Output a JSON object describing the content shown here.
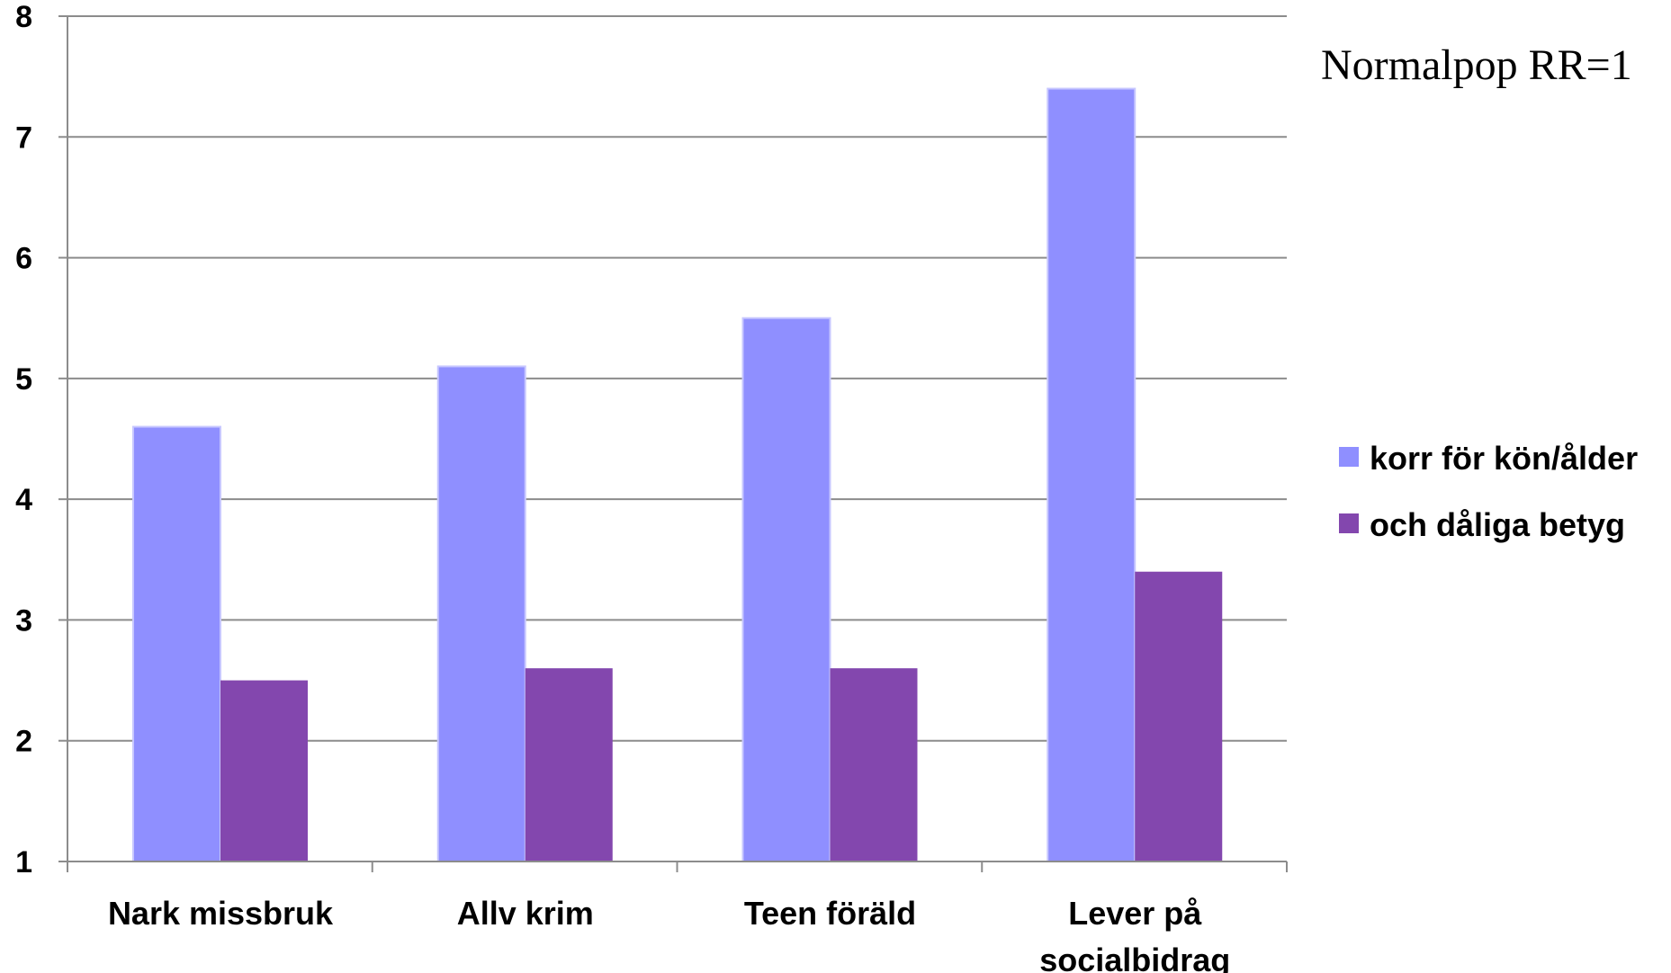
{
  "chart_data": {
    "type": "bar",
    "categories": [
      [
        "Nark missbruk"
      ],
      [
        "Allv krim"
      ],
      [
        "Teen föräld"
      ],
      [
        "Lever på",
        "socialbidrag"
      ]
    ],
    "series": [
      {
        "name": "korr för kön/ålder",
        "values": [
          4.6,
          5.1,
          5.5,
          7.4
        ],
        "color": "#8f8fff"
      },
      {
        "name": "och dåliga betyg",
        "values": [
          2.5,
          2.6,
          2.6,
          3.4
        ],
        "color": "#8347ae"
      }
    ],
    "ylim": [
      1,
      8
    ],
    "yticks": [
      "1",
      "2",
      "3",
      "4",
      "5",
      "6",
      "7",
      "8"
    ],
    "grid": true,
    "legend_position": "right",
    "annotation": "Normalpop RR=1",
    "title": "",
    "xlabel": "",
    "ylabel": ""
  }
}
